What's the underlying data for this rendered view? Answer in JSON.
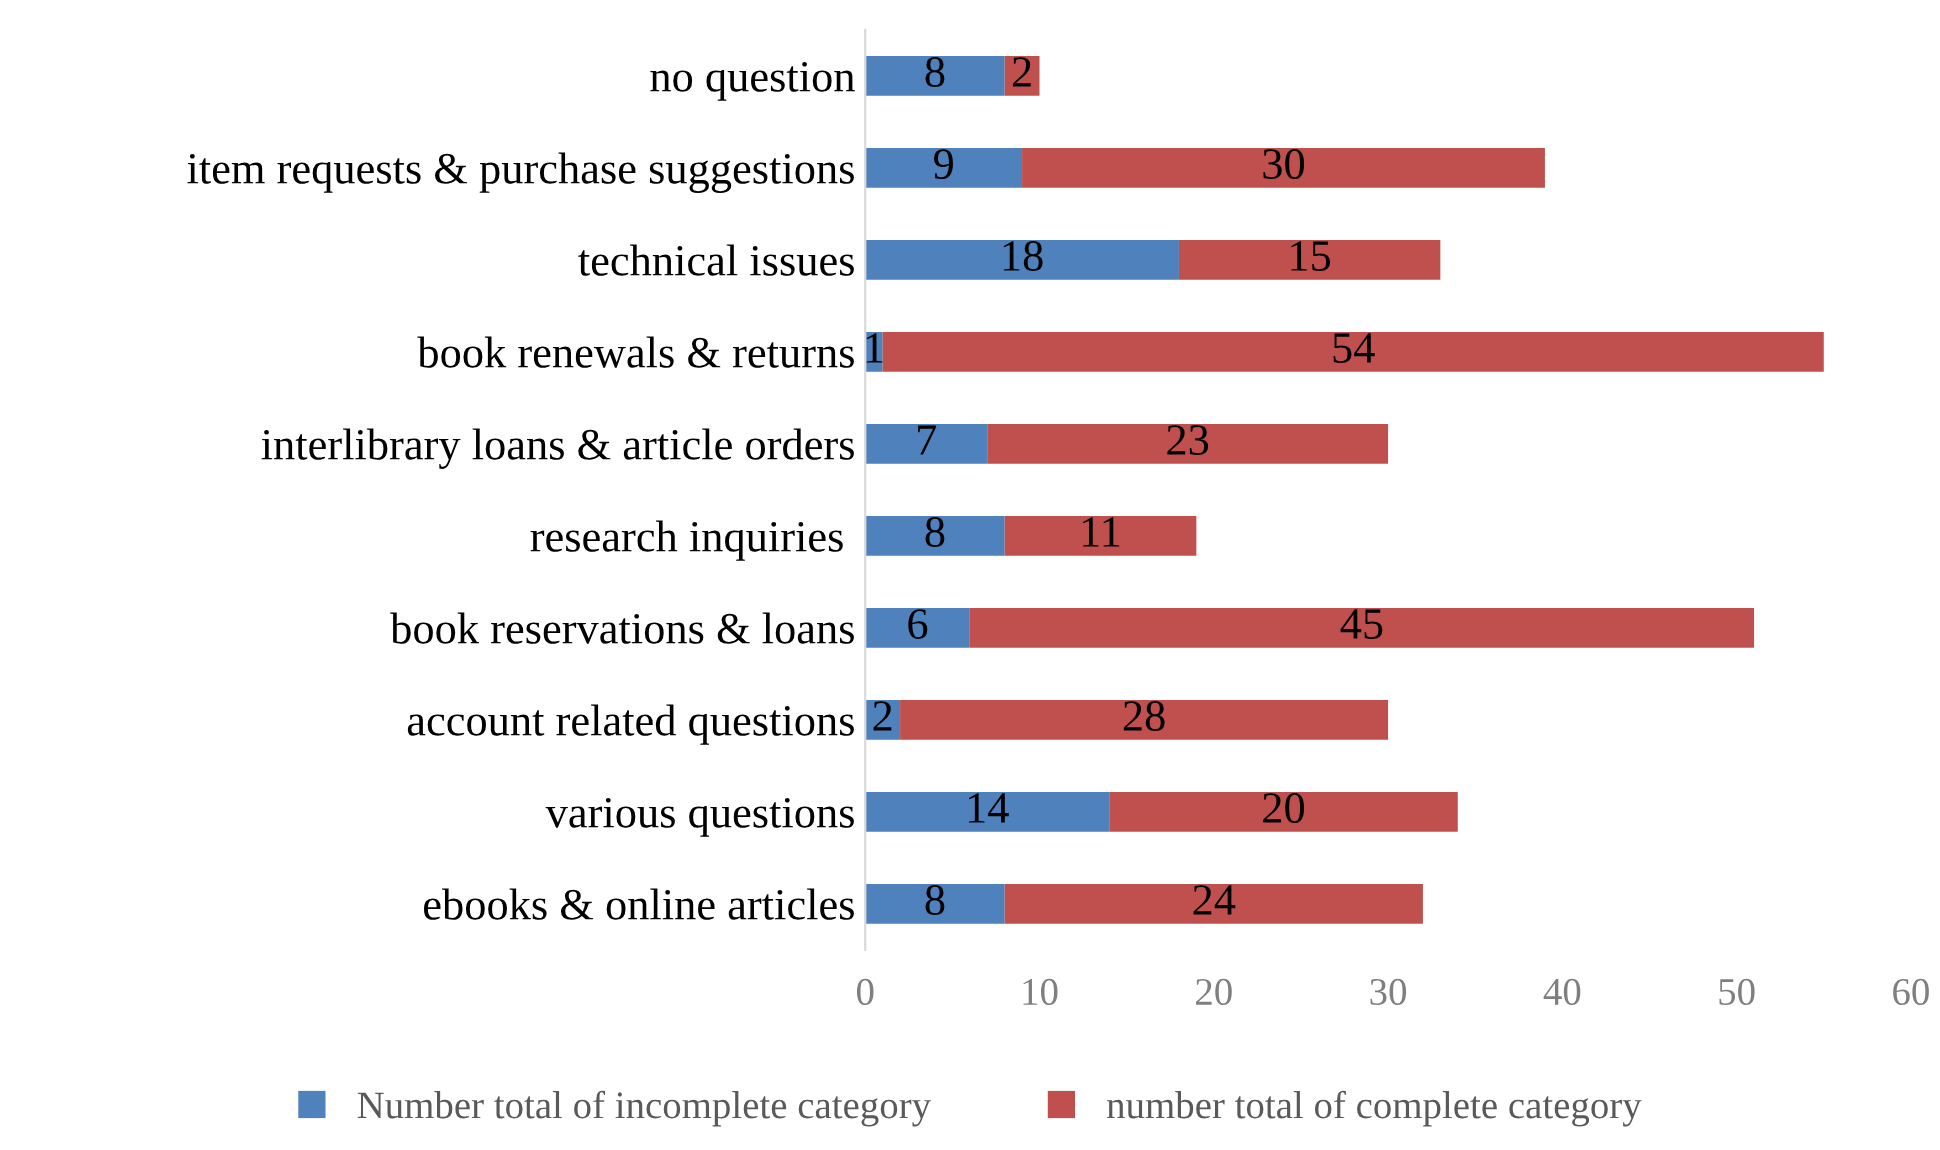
{
  "chart_data": {
    "type": "bar",
    "orientation": "horizontal",
    "stacked": true,
    "categories": [
      "no question",
      "item requests & purchase suggestions",
      "technical issues",
      "book renewals & returns",
      "interlibrary loans & article orders",
      "research inquiries ",
      "book reservations & loans",
      "account related questions",
      "various questions",
      "ebooks & online articles"
    ],
    "series": [
      {
        "name": "Number total of incomplete category",
        "color": "#4f81bd",
        "values": [
          8,
          9,
          18,
          1,
          7,
          8,
          6,
          2,
          14,
          8
        ]
      },
      {
        "name": "number total of complete category",
        "color": "#c0504d",
        "values": [
          2,
          30,
          15,
          54,
          23,
          11,
          45,
          28,
          20,
          24
        ]
      }
    ],
    "xlim": [
      0,
      60
    ],
    "xticks": [
      0,
      10,
      20,
      30,
      40,
      50,
      60
    ],
    "data_labels": true,
    "grid": false,
    "legend": "bottom"
  }
}
